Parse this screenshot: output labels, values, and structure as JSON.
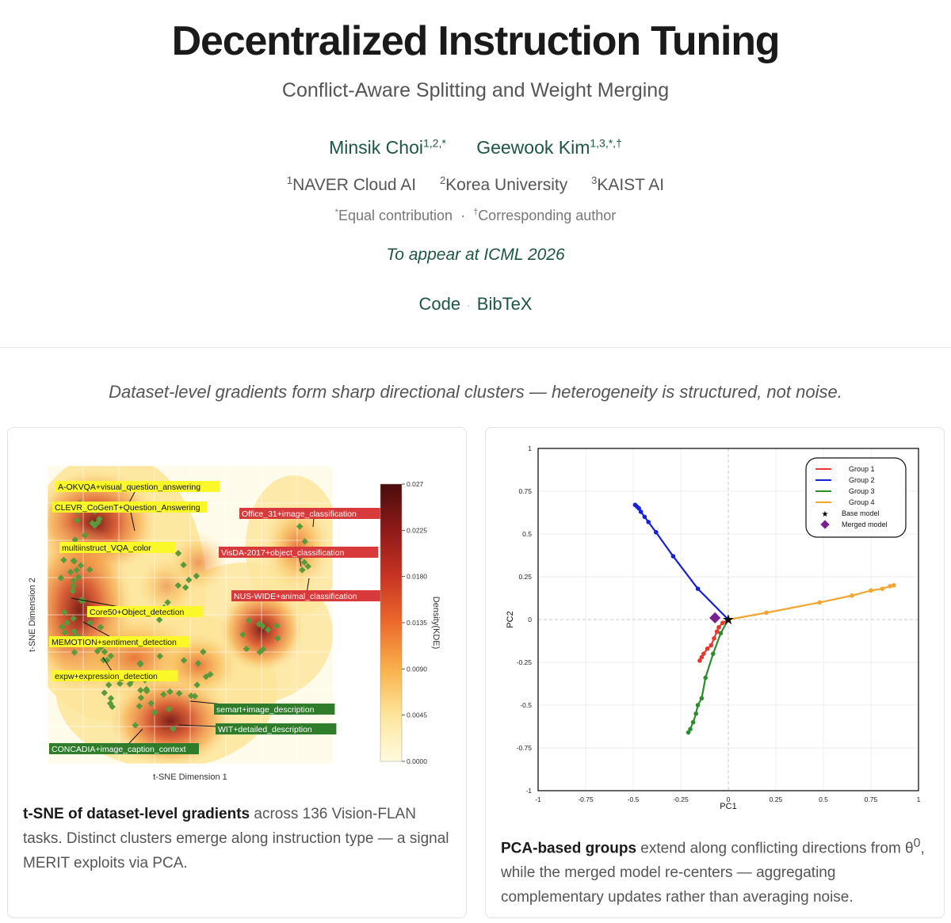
{
  "header": {
    "title": "Decentralized Instruction Tuning",
    "subtitle": "Conflict-Aware Splitting and Weight Merging",
    "authors": [
      {
        "name": "Minsik Choi",
        "sup": "1,2,*"
      },
      {
        "name": "Geewook Kim",
        "sup": "1,3,*,†"
      }
    ],
    "affiliations": [
      {
        "sup": "1",
        "name": "NAVER Cloud AI"
      },
      {
        "sup": "2",
        "name": "Korea University"
      },
      {
        "sup": "3",
        "name": "KAIST AI"
      }
    ],
    "notes": [
      {
        "sup": "*",
        "text": "Equal contribution"
      },
      {
        "sup": "†",
        "text": "Corresponding author"
      }
    ],
    "notes_sep": "·",
    "venue": "To appear at ICML 2026",
    "links": [
      "Code",
      "BibTeX"
    ],
    "links_sep": "·"
  },
  "tagline": "Dataset-level gradients form sharp directional clusters — heterogeneity is structured, not noise.",
  "left_card": {
    "caption_bold": "t-SNE of dataset-level gradients",
    "caption_rest": " across 136 Vision-FLAN tasks. Distinct clusters emerge along instruction type — a signal MERIT exploits via PCA."
  },
  "right_card": {
    "caption_bold": "PCA-based groups",
    "caption_mid": " extend along conflicting directions from θ",
    "caption_sup": "0",
    "caption_rest": ", while the merged model re-centers — aggregating complementary updates rather than averaging noise."
  },
  "chart_data": [
    {
      "type": "heatmap",
      "subtype": "kde-density-with-scatter",
      "xlabel": "t-SNE Dimension 1",
      "ylabel": "t-SNE Dimension 2",
      "colorbar_label": "Density(KDE)",
      "colorbar_ticks": [
        "0.0000",
        "0.0045",
        "0.0090",
        "0.0135",
        "0.0180",
        "0.0225",
        "0.027"
      ],
      "colorbar_range": [
        0,
        0.027
      ],
      "point_color": "#5a9a3c",
      "colormap": [
        "#fffbe0",
        "#fde59a",
        "#f9b24c",
        "#ec6a2c",
        "#c73322",
        "#8f1a18",
        "#4a0d0d"
      ],
      "annotations": [
        {
          "text": "A-OKVQA+visual_question_answering",
          "color": "yellow"
        },
        {
          "text": "CLEVR_CoGenT+Question_Answering",
          "color": "yellow"
        },
        {
          "text": "multiinstruct_VQA_color",
          "color": "yellow"
        },
        {
          "text": "Core50+Object_detection",
          "color": "yellow"
        },
        {
          "text": "MEMOTION+sentiment_detection",
          "color": "yellow"
        },
        {
          "text": "expw+expression_detection",
          "color": "yellow"
        },
        {
          "text": "Office_31+image_classification",
          "color": "red"
        },
        {
          "text": "VisDA-2017+object_classification",
          "color": "red"
        },
        {
          "text": "NUS-WIDE+animal_classification",
          "color": "red"
        },
        {
          "text": "semart+image_description",
          "color": "green"
        },
        {
          "text": "WIT+detailed_description",
          "color": "green"
        },
        {
          "text": "CONCADIA+image_caption_context",
          "color": "green"
        }
      ]
    },
    {
      "type": "line",
      "xlabel": "PC1",
      "ylabel": "PC2",
      "xlim": [
        -1,
        1
      ],
      "ylim": [
        -1,
        1
      ],
      "xticks": [
        "-1",
        "-0.75",
        "-0.5",
        "-0.25",
        "0",
        "0.25",
        "0.5",
        "0.75",
        "1"
      ],
      "yticks": [
        "1",
        "0.75",
        "0.5",
        "0.25",
        "0",
        "-0.25",
        "-0.5",
        "-0.75",
        "-1"
      ],
      "grid": true,
      "legend_position": "top-right",
      "series": [
        {
          "name": "Group 1",
          "color": "#e8372c",
          "x": [
            0.0,
            -0.03,
            -0.05,
            -0.06,
            -0.075,
            -0.09,
            -0.11,
            -0.13,
            -0.14,
            -0.15
          ],
          "y": [
            0.0,
            -0.02,
            -0.045,
            -0.07,
            -0.11,
            -0.15,
            -0.17,
            -0.2,
            -0.22,
            -0.24
          ]
        },
        {
          "name": "Group 2",
          "color": "#1620d8",
          "x": [
            0.0,
            -0.16,
            -0.29,
            -0.38,
            -0.42,
            -0.44,
            -0.46,
            -0.47,
            -0.48,
            -0.49
          ],
          "y": [
            0.0,
            0.18,
            0.37,
            0.51,
            0.57,
            0.6,
            0.63,
            0.65,
            0.66,
            0.67
          ]
        },
        {
          "name": "Group 3",
          "color": "#2e8b2e",
          "x": [
            0.0,
            -0.04,
            -0.08,
            -0.12,
            -0.14,
            -0.16,
            -0.17,
            -0.185,
            -0.2,
            -0.21
          ],
          "y": [
            0.0,
            -0.08,
            -0.2,
            -0.34,
            -0.46,
            -0.5,
            -0.55,
            -0.6,
            -0.64,
            -0.66
          ]
        },
        {
          "name": "Group 4",
          "color": "#f2a531",
          "x": [
            0.0,
            0.2,
            0.48,
            0.65,
            0.75,
            0.81,
            0.85,
            0.87
          ],
          "y": [
            0.0,
            0.04,
            0.1,
            0.14,
            0.17,
            0.18,
            0.195,
            0.2
          ]
        }
      ],
      "markers": [
        {
          "name": "Base model",
          "symbol": "star",
          "color": "#000000",
          "x": 0.0,
          "y": 0.0
        },
        {
          "name": "Merged model",
          "symbol": "diamond",
          "color": "#7a1f8f",
          "x": -0.07,
          "y": 0.01
        }
      ]
    }
  ]
}
